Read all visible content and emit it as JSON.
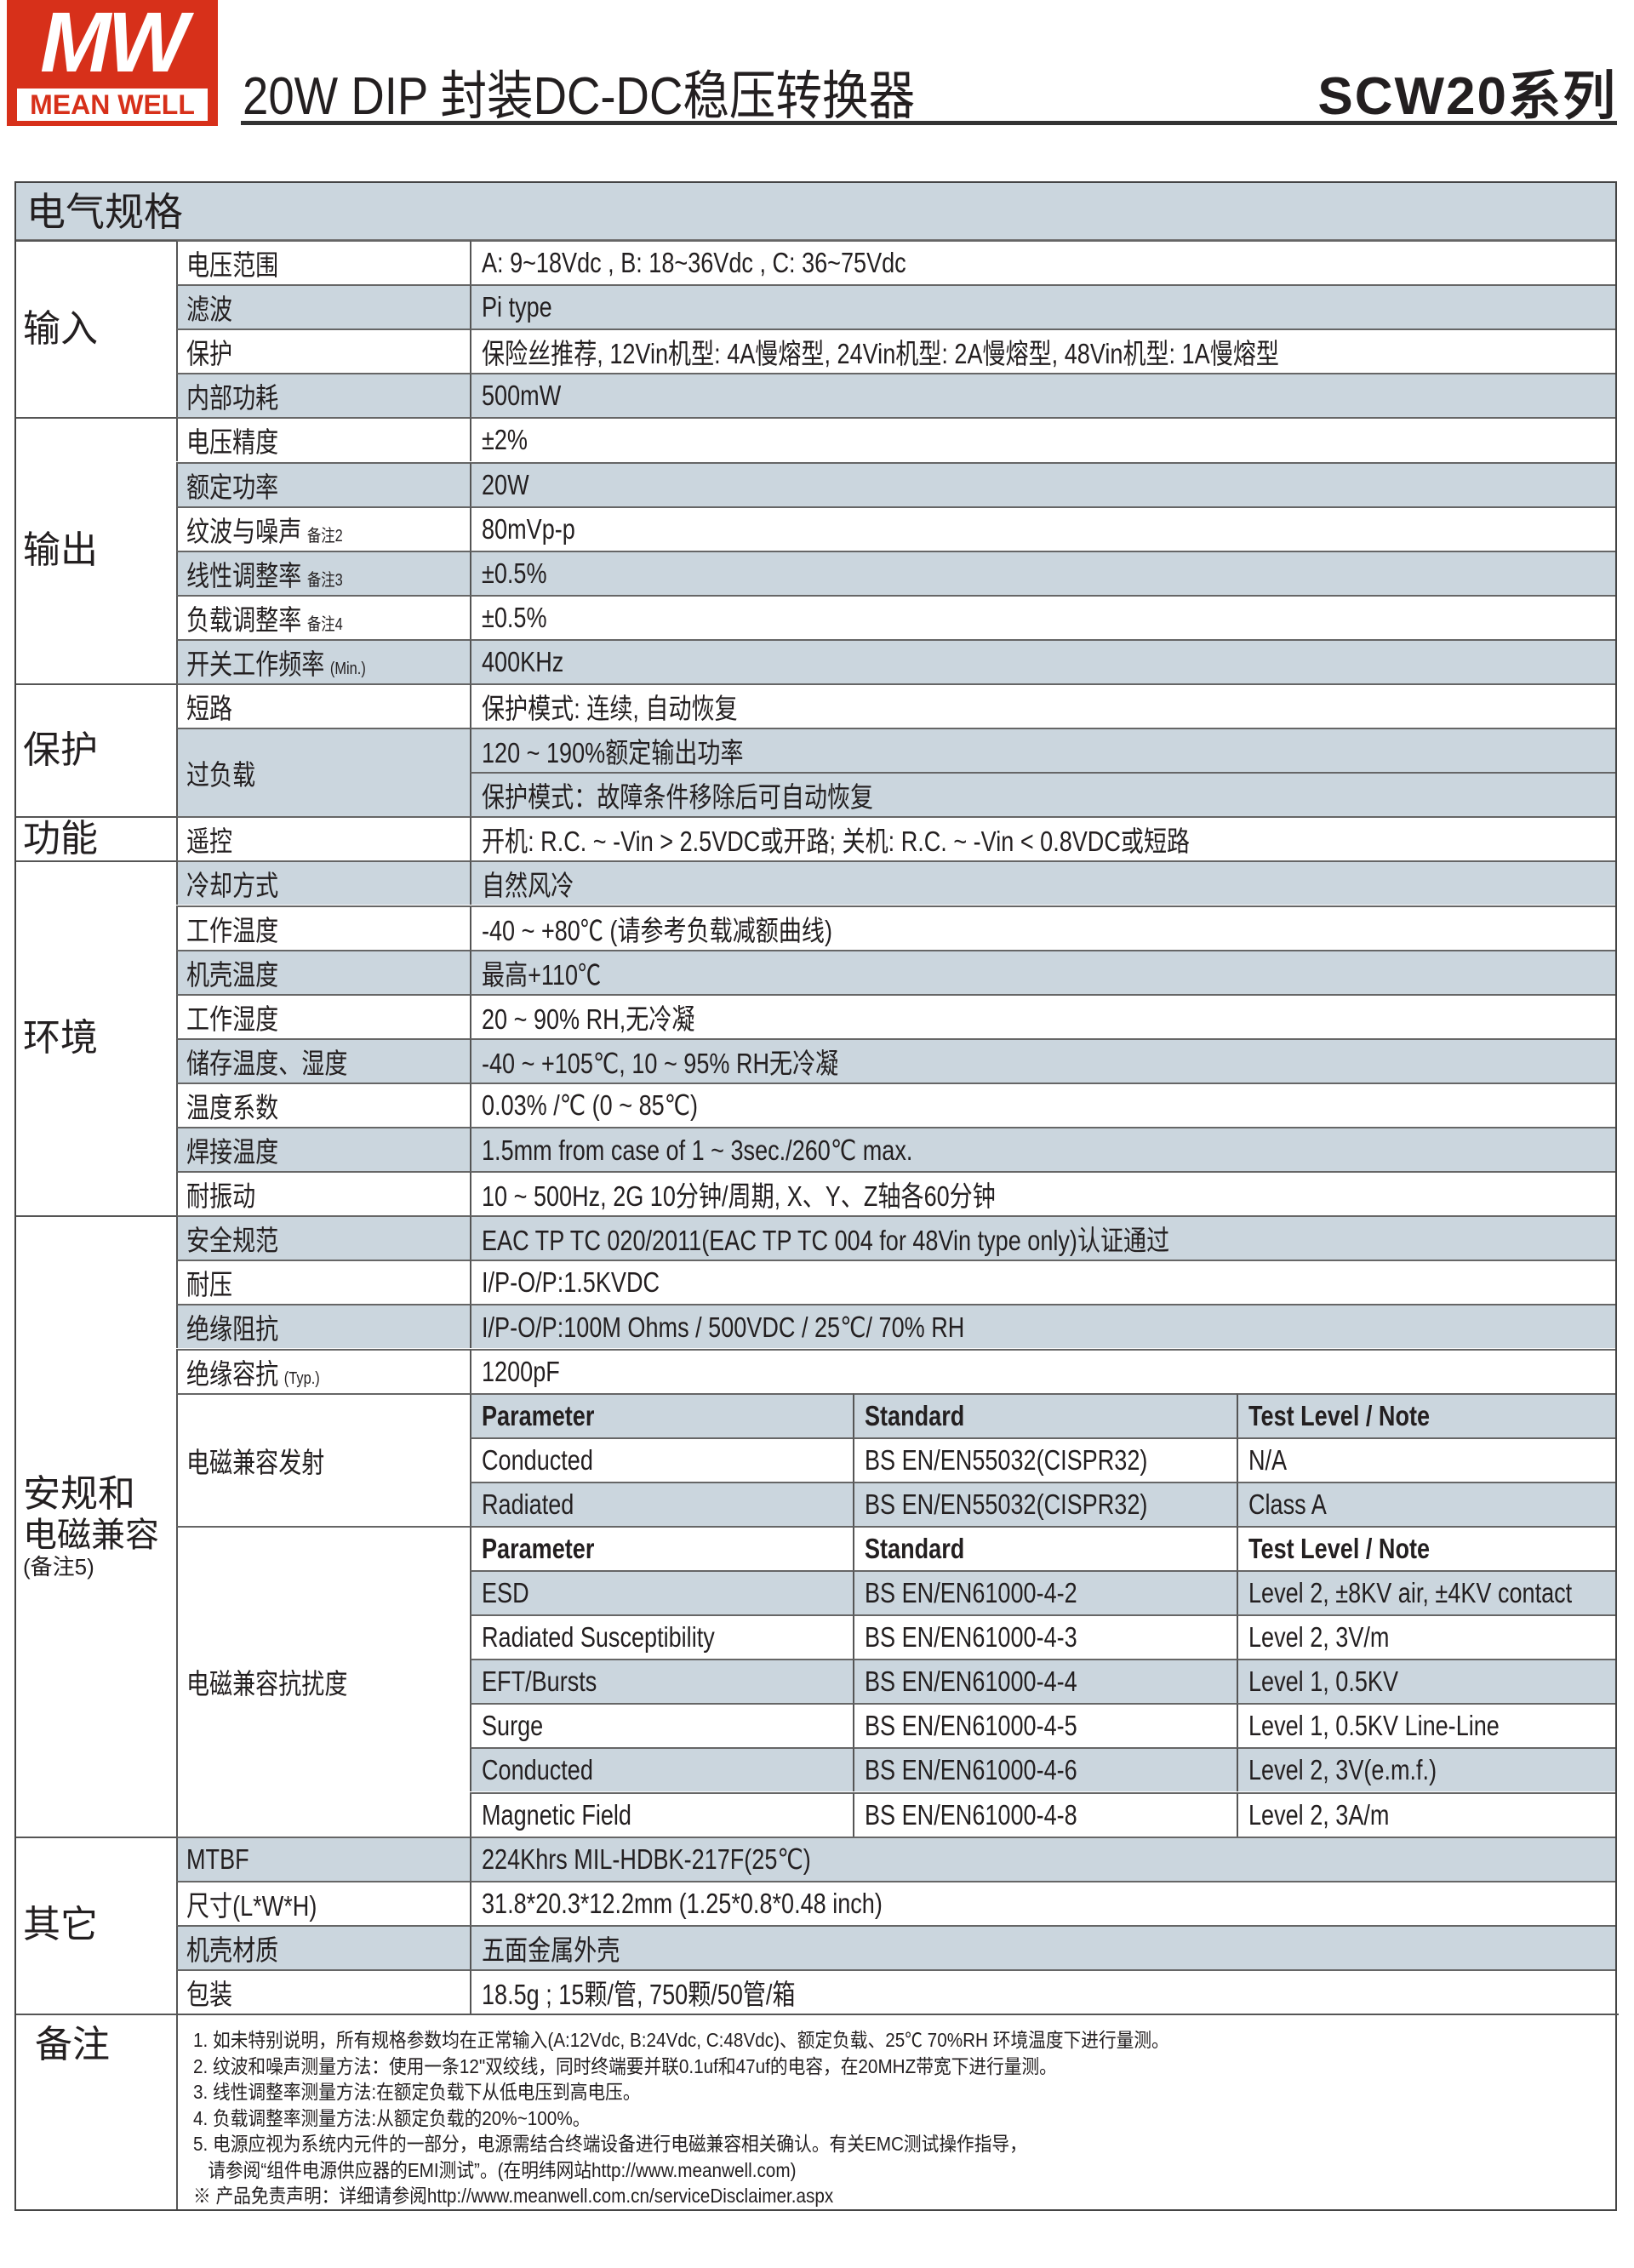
{
  "header": {
    "logo_text": "MW",
    "logo_brand": "MEAN WELL",
    "title": "20W DIP 封装DC-DC稳压转换器",
    "series": "SCW20系列",
    "brand_color": "#d7301a",
    "shade_color": "#cbd6de"
  },
  "section_title": "电气规格",
  "sections": [
    {
      "label": "输入",
      "rows": [
        {
          "label": "电压范围",
          "value": "A: 9~18Vdc , B: 18~36Vdc , C: 36~75Vdc"
        },
        {
          "label": "滤波",
          "value": "Pi type"
        },
        {
          "label": "保护",
          "value": "保险丝推荐, 12Vin机型: 4A慢熔型, 24Vin机型: 2A慢熔型, 48Vin机型: 1A慢熔型"
        },
        {
          "label": "内部功耗",
          "value": "500mW"
        }
      ]
    },
    {
      "label": "输出",
      "rows": [
        {
          "label": "电压精度",
          "value": "±2%"
        },
        {
          "label": "额定功率",
          "value": "20W"
        },
        {
          "label": "纹波与噪声",
          "note": "备注2",
          "value": "80mVp-p"
        },
        {
          "label": "线性调整率",
          "note": "备注3",
          "value": "±0.5%"
        },
        {
          "label": "负载调整率",
          "note": "备注4",
          "value": "±0.5%"
        },
        {
          "label": "开关工作频率",
          "note": "(Min.)",
          "value": "400KHz"
        }
      ]
    },
    {
      "label": "保护",
      "rows": [
        {
          "label": "短路",
          "value": "保护模式: 连续, 自动恢复"
        },
        {
          "label": "过负载",
          "values": [
            "120 ~ 190%额定输出功率",
            "保护模式：故障条件移除后可自动恢复"
          ]
        }
      ]
    },
    {
      "label": "功能",
      "rows": [
        {
          "label": "遥控",
          "value": "开机: R.C. ~ -Vin > 2.5VDC或开路; 关机: R.C. ~ -Vin < 0.8VDC或短路"
        }
      ]
    },
    {
      "label": "环境",
      "rows": [
        {
          "label": "冷却方式",
          "value": "自然风冷"
        },
        {
          "label": "工作温度",
          "value": "-40 ~ +80℃ (请参考负载减额曲线)"
        },
        {
          "label": "机壳温度",
          "value": "最高+110℃"
        },
        {
          "label": "工作湿度",
          "value": "20 ~ 90% RH,无冷凝"
        },
        {
          "label": "储存温度、湿度",
          "value": "-40 ~ +105℃, 10 ~ 95% RH无冷凝"
        },
        {
          "label": "温度系数",
          "value": "0.03% /℃ (0 ~ 85℃)"
        },
        {
          "label": "焊接温度",
          "value": "1.5mm from case of 1 ~ 3sec./260℃ max."
        },
        {
          "label": "耐振动",
          "value": "10 ~ 500Hz, 2G 10分钟/周期, X、Y、Z轴各60分钟"
        }
      ]
    },
    {
      "label": "安规和",
      "label2": "电磁兼容",
      "sublabel": "(备注5)",
      "rows": [
        {
          "label": "安全规范",
          "value": "EAC TP TC 020/2011(EAC TP TC 004 for 48Vin type only)认证通过"
        },
        {
          "label": "耐压",
          "value": "I/P-O/P:1.5KVDC"
        },
        {
          "label": "绝缘阻抗",
          "value": "I/P-O/P:100M Ohms / 500VDC / 25℃/ 70% RH"
        },
        {
          "label": "绝缘容抗",
          "note": "(Typ.)",
          "value": "1200pF"
        },
        {
          "label": "电磁兼容发射",
          "table": {
            "header": [
              "Parameter",
              "Standard",
              "Test Level / Note"
            ],
            "rows": [
              [
                "Conducted",
                "BS EN/EN55032(CISPR32)",
                "N/A"
              ],
              [
                "Radiated",
                "BS EN/EN55032(CISPR32)",
                "Class A"
              ]
            ]
          }
        },
        {
          "label": "电磁兼容抗扰度",
          "table": {
            "header": [
              "Parameter",
              "Standard",
              "Test Level / Note"
            ],
            "rows": [
              [
                "ESD",
                "BS EN/EN61000-4-2",
                "Level 2, ±8KV air, ±4KV contact"
              ],
              [
                "Radiated Susceptibility",
                "BS EN/EN61000-4-3",
                "Level 2, 3V/m"
              ],
              [
                "EFT/Bursts",
                "BS EN/EN61000-4-4",
                "Level 1, 0.5KV"
              ],
              [
                "Surge",
                "BS EN/EN61000-4-5",
                "Level 1, 0.5KV Line-Line"
              ],
              [
                "Conducted",
                "BS EN/EN61000-4-6",
                "Level 2, 3V(e.m.f.)"
              ],
              [
                "Magnetic Field",
                "BS EN/EN61000-4-8",
                "Level 2, 3A/m"
              ]
            ]
          }
        }
      ]
    },
    {
      "label": "其它",
      "rows": [
        {
          "label": "MTBF",
          "value": "224Khrs  MIL-HDBK-217F(25℃)"
        },
        {
          "label": "尺寸(L*W*H)",
          "value": "31.8*20.3*12.2mm (1.25*0.8*0.48 inch)"
        },
        {
          "label": "机壳材质",
          "value": "五面金属外壳"
        },
        {
          "label": "包装",
          "value": "18.5g ; 15颗/管, 750颗/50管/箱"
        }
      ]
    }
  ],
  "notes": {
    "label": "备注",
    "lines": [
      "1. 如未特别说明，所有规格参数均在正常输入(A:12Vdc, B:24Vdc, C:48Vdc)、额定负载、25℃ 70%RH 环境温度下进行量测。",
      "2. 纹波和噪声测量方法：使用一条12\"双绞线，同时终端要并联0.1uf和47uf的电容，在20MHZ带宽下进行量测。",
      "3. 线性调整率测量方法:在额定负载下从低电压到高电压。",
      "4. 负载调整率测量方法:从额定负载的20%~100%。",
      "5. 电源应视为系统内元件的一部分，电源需结合终端设备进行电磁兼容相关确认。有关EMC测试操作指导，",
      "   请参阅“组件电源供应器的EMI测试”。(在明纬网站http://www.meanwell.com)",
      "※ 产品免责声明：详细请参阅http://www.meanwell.com.cn/serviceDisclaimer.aspx"
    ]
  }
}
